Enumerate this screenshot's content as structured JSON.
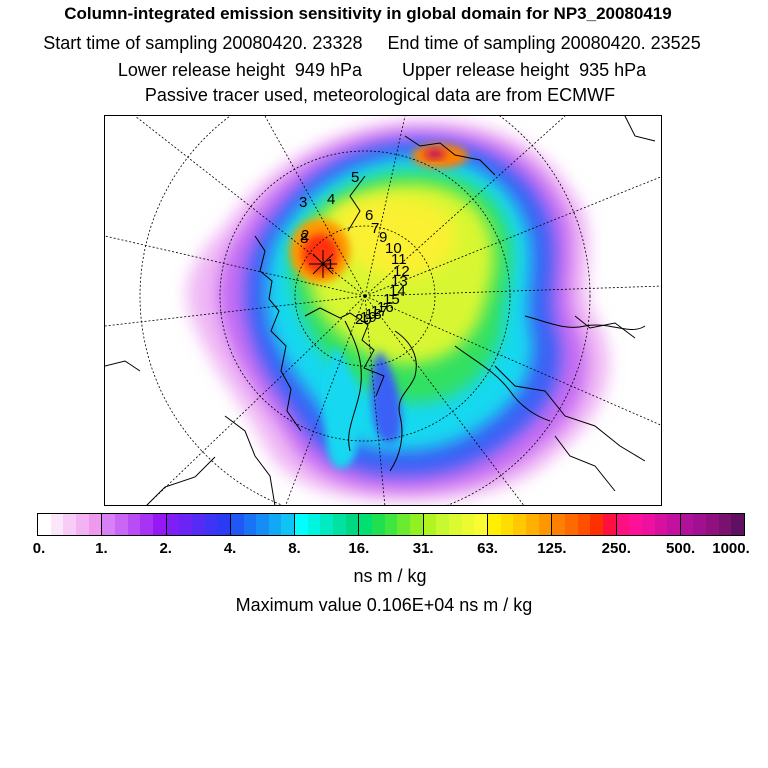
{
  "header": {
    "title": "Column-integrated emission sensitivity in global domain for NP3_20080419",
    "sampling": "Start time of sampling 20080420. 23328     End time of sampling 20080420. 23525",
    "release": "Lower release height  949 hPa        Upper release height  935 hPa",
    "tracer": "Passive tracer used, meteorological data are from ECMWF"
  },
  "map": {
    "projection": "polar stereographic",
    "trajectory_labels": [
      "1",
      "2",
      "3",
      "4",
      "5",
      "6",
      "7",
      "8",
      "9",
      "10",
      "11",
      "12",
      "13",
      "14",
      "15",
      "16",
      "17",
      "18",
      "19",
      "20"
    ]
  },
  "legend": {
    "ticks": [
      "0.",
      "1.",
      "2.",
      "4.",
      "8.",
      "16.",
      "31.",
      "63.",
      "125.",
      "250.",
      "500.",
      "1000."
    ],
    "unit": "ns m / kg",
    "colors": [
      "#ffffff",
      "#fbe6fb",
      "#f7cdf7",
      "#f2b3f2",
      "#ee99ee",
      "#d880f5",
      "#c966f5",
      "#b94df5",
      "#a833f5",
      "#9619f5",
      "#7d1ff5",
      "#6a24f5",
      "#552bf5",
      "#3f33f5",
      "#2a3af5",
      "#2058f5",
      "#1a73f5",
      "#168df5",
      "#13a8f5",
      "#10c3f5",
      "#00ffff",
      "#00f5e0",
      "#00ebc1",
      "#00e1a2",
      "#00d782",
      "#00e070",
      "#20e050",
      "#40e640",
      "#6aeb30",
      "#90f020",
      "#b0f520",
      "#c8f830",
      "#dcfa30",
      "#ecfb30",
      "#f8fc30",
      "#fff000",
      "#ffdd00",
      "#ffc800",
      "#ffb000",
      "#ff9800",
      "#ff8000",
      "#ff6a00",
      "#ff5000",
      "#ff3000",
      "#ff1040",
      "#ff1080",
      "#ff1099",
      "#ee10a0",
      "#d810a0",
      "#c210a0",
      "#b0109a",
      "#a01090",
      "#901080",
      "#7a1070",
      "#601060"
    ],
    "max_value": "Maximum value  0.106E+04 ns m / kg"
  }
}
